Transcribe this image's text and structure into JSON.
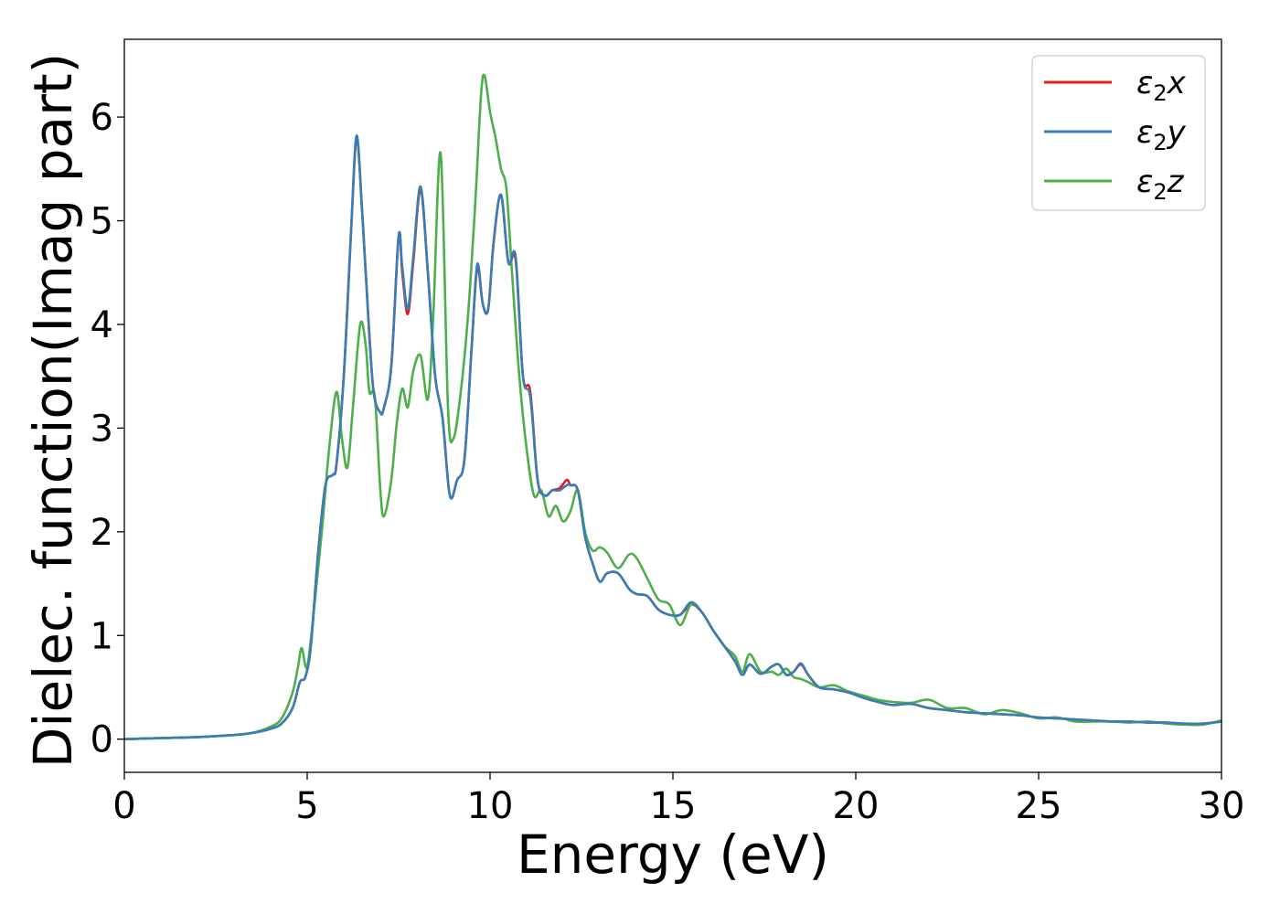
{
  "chart_data": {
    "type": "line",
    "title": "",
    "xlabel": "Energy (eV)",
    "ylabel": "Dielec. function(Imag part)",
    "xlim": [
      0,
      30
    ],
    "ylim": [
      -0.32,
      6.75
    ],
    "xticks": [
      0,
      5,
      10,
      15,
      20,
      25,
      30
    ],
    "xtick_labels": [
      "0",
      "5",
      "10",
      "15",
      "20",
      "25",
      "30"
    ],
    "yticks": [
      0,
      1,
      2,
      3,
      4,
      5,
      6
    ],
    "ytick_labels": [
      "0",
      "1",
      "2",
      "3",
      "4",
      "5",
      "6"
    ],
    "grid": false,
    "legend_position": "top-right",
    "series": [
      {
        "name": "ε2x",
        "legend_base": "ε",
        "legend_sub": "2",
        "legend_suffix": "x",
        "color": "#e41a1c",
        "x": [
          0,
          1,
          2,
          3,
          3.5,
          4,
          4.3,
          4.6,
          4.8,
          4.95,
          5.1,
          5.3,
          5.5,
          5.7,
          5.8,
          6.0,
          6.2,
          6.35,
          6.5,
          6.6,
          6.8,
          7.0,
          7.1,
          7.3,
          7.5,
          7.6,
          7.75,
          7.9,
          8.1,
          8.3,
          8.5,
          8.7,
          8.9,
          9.1,
          9.3,
          9.5,
          9.65,
          9.8,
          9.95,
          10.1,
          10.3,
          10.5,
          10.7,
          10.9,
          11.1,
          11.3,
          11.5,
          11.7,
          11.9,
          12.1,
          12.2,
          12.4,
          12.6,
          12.8,
          13.0,
          13.2,
          13.5,
          13.8,
          14.0,
          14.3,
          14.6,
          14.9,
          15.2,
          15.5,
          15.8,
          16.1,
          16.4,
          16.7,
          16.9,
          17.1,
          17.4,
          17.7,
          17.9,
          18.1,
          18.3,
          18.5,
          18.7,
          19.0,
          19.4,
          19.8,
          20.2,
          20.6,
          21.0,
          21.5,
          22.0,
          22.5,
          23.0,
          23.5,
          24.0,
          24.5,
          25.0,
          25.5,
          26.0,
          26.5,
          27.0,
          27.5,
          28.0,
          28.5,
          29.0,
          29.5,
          30.0
        ],
        "y": [
          0.0,
          0.01,
          0.02,
          0.04,
          0.06,
          0.1,
          0.15,
          0.3,
          0.55,
          0.6,
          0.9,
          1.8,
          2.45,
          2.55,
          2.65,
          3.5,
          4.9,
          5.8,
          5.1,
          4.5,
          3.4,
          3.15,
          3.2,
          3.6,
          4.85,
          4.5,
          4.1,
          4.6,
          5.3,
          4.5,
          3.5,
          3.1,
          2.35,
          2.5,
          2.7,
          3.8,
          4.55,
          4.2,
          4.15,
          4.8,
          5.25,
          4.6,
          4.62,
          3.5,
          3.35,
          2.5,
          2.35,
          2.4,
          2.42,
          2.5,
          2.45,
          2.4,
          1.95,
          1.7,
          1.52,
          1.6,
          1.6,
          1.45,
          1.4,
          1.38,
          1.25,
          1.2,
          1.2,
          1.3,
          1.22,
          1.05,
          0.9,
          0.75,
          0.62,
          0.72,
          0.63,
          0.7,
          0.72,
          0.62,
          0.65,
          0.72,
          0.62,
          0.5,
          0.48,
          0.45,
          0.4,
          0.36,
          0.33,
          0.34,
          0.3,
          0.28,
          0.26,
          0.25,
          0.24,
          0.23,
          0.21,
          0.2,
          0.19,
          0.18,
          0.17,
          0.17,
          0.16,
          0.16,
          0.15,
          0.15,
          0.17
        ]
      },
      {
        "name": "ε2y",
        "legend_base": "ε",
        "legend_sub": "2",
        "legend_suffix": "y",
        "color": "#377eb8",
        "x": [
          0,
          1,
          2,
          3,
          3.5,
          4,
          4.3,
          4.6,
          4.8,
          4.95,
          5.1,
          5.3,
          5.5,
          5.7,
          5.8,
          6.0,
          6.2,
          6.35,
          6.5,
          6.6,
          6.8,
          7.0,
          7.1,
          7.3,
          7.5,
          7.6,
          7.75,
          7.9,
          8.1,
          8.3,
          8.5,
          8.7,
          8.9,
          9.1,
          9.3,
          9.5,
          9.65,
          9.8,
          9.95,
          10.1,
          10.3,
          10.5,
          10.7,
          10.9,
          11.1,
          11.3,
          11.5,
          11.7,
          11.9,
          12.1,
          12.2,
          12.4,
          12.6,
          12.8,
          13.0,
          13.2,
          13.5,
          13.8,
          14.0,
          14.3,
          14.6,
          14.9,
          15.2,
          15.5,
          15.8,
          16.1,
          16.4,
          16.7,
          16.9,
          17.1,
          17.4,
          17.7,
          17.9,
          18.1,
          18.3,
          18.5,
          18.7,
          19.0,
          19.4,
          19.8,
          20.2,
          20.6,
          21.0,
          21.5,
          22.0,
          22.5,
          23.0,
          23.5,
          24.0,
          24.5,
          25.0,
          25.5,
          26.0,
          26.5,
          27.0,
          27.5,
          28.0,
          28.5,
          29.0,
          29.5,
          30.0
        ],
        "y": [
          0.0,
          0.01,
          0.02,
          0.04,
          0.06,
          0.1,
          0.15,
          0.3,
          0.55,
          0.6,
          0.9,
          1.8,
          2.45,
          2.55,
          2.65,
          3.5,
          4.9,
          5.82,
          5.1,
          4.5,
          3.4,
          3.15,
          3.2,
          3.6,
          4.85,
          4.55,
          4.15,
          4.65,
          5.33,
          4.5,
          3.5,
          3.1,
          2.35,
          2.5,
          2.7,
          3.8,
          4.58,
          4.2,
          4.15,
          4.8,
          5.25,
          4.6,
          4.65,
          3.5,
          3.3,
          2.5,
          2.35,
          2.4,
          2.4,
          2.45,
          2.45,
          2.4,
          1.95,
          1.7,
          1.52,
          1.6,
          1.6,
          1.45,
          1.4,
          1.38,
          1.25,
          1.2,
          1.2,
          1.32,
          1.22,
          1.05,
          0.9,
          0.75,
          0.62,
          0.72,
          0.63,
          0.7,
          0.72,
          0.62,
          0.65,
          0.73,
          0.62,
          0.5,
          0.48,
          0.45,
          0.4,
          0.36,
          0.33,
          0.34,
          0.3,
          0.28,
          0.26,
          0.25,
          0.24,
          0.23,
          0.21,
          0.2,
          0.19,
          0.18,
          0.17,
          0.17,
          0.16,
          0.16,
          0.15,
          0.15,
          0.17
        ]
      },
      {
        "name": "ε2z",
        "legend_base": "ε",
        "legend_sub": "2",
        "legend_suffix": "z",
        "color": "#4daf4a",
        "x": [
          0,
          1,
          2,
          3,
          3.5,
          4,
          4.3,
          4.6,
          4.75,
          4.85,
          5.0,
          5.2,
          5.4,
          5.6,
          5.8,
          5.95,
          6.1,
          6.25,
          6.45,
          6.6,
          6.7,
          6.85,
          7.0,
          7.1,
          7.3,
          7.45,
          7.6,
          7.75,
          7.9,
          8.1,
          8.3,
          8.45,
          8.65,
          8.85,
          9.0,
          9.2,
          9.4,
          9.6,
          9.75,
          9.85,
          10.0,
          10.15,
          10.3,
          10.45,
          10.6,
          10.8,
          11.0,
          11.2,
          11.4,
          11.6,
          11.8,
          12.0,
          12.2,
          12.4,
          12.6,
          12.8,
          13.0,
          13.2,
          13.5,
          13.8,
          14.0,
          14.3,
          14.6,
          14.9,
          15.2,
          15.5,
          15.8,
          16.1,
          16.4,
          16.7,
          16.9,
          17.1,
          17.4,
          17.7,
          17.9,
          18.1,
          18.3,
          18.5,
          18.7,
          19.0,
          19.4,
          19.8,
          20.2,
          20.6,
          21.0,
          21.5,
          22.0,
          22.5,
          23.0,
          23.5,
          24.0,
          24.5,
          25.0,
          25.5,
          26.0,
          26.5,
          27.0,
          27.5,
          28.0,
          28.5,
          29.0,
          29.5,
          30.0
        ],
        "y": [
          0.0,
          0.01,
          0.02,
          0.04,
          0.06,
          0.12,
          0.2,
          0.45,
          0.7,
          0.88,
          0.7,
          1.3,
          2.0,
          2.8,
          3.35,
          2.9,
          2.62,
          3.2,
          4.0,
          3.8,
          3.35,
          3.3,
          2.4,
          2.15,
          2.5,
          3.05,
          3.38,
          3.2,
          3.55,
          3.7,
          3.28,
          4.1,
          5.65,
          3.2,
          2.9,
          3.35,
          4.1,
          5.2,
          6.2,
          6.4,
          6.05,
          5.8,
          5.5,
          5.3,
          4.5,
          3.5,
          2.8,
          2.35,
          2.4,
          2.15,
          2.25,
          2.1,
          2.2,
          2.4,
          2.0,
          1.82,
          1.85,
          1.8,
          1.65,
          1.78,
          1.75,
          1.55,
          1.35,
          1.3,
          1.1,
          1.3,
          1.22,
          1.05,
          0.9,
          0.8,
          0.65,
          0.82,
          0.65,
          0.65,
          0.62,
          0.68,
          0.6,
          0.58,
          0.55,
          0.5,
          0.52,
          0.46,
          0.42,
          0.38,
          0.36,
          0.35,
          0.38,
          0.3,
          0.3,
          0.24,
          0.28,
          0.25,
          0.2,
          0.21,
          0.17,
          0.17,
          0.17,
          0.16,
          0.17,
          0.15,
          0.14,
          0.14,
          0.18
        ]
      }
    ]
  }
}
